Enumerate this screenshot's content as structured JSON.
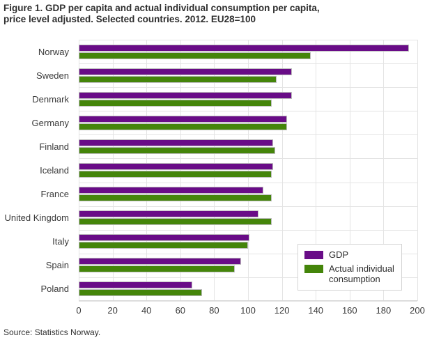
{
  "page": {
    "title_lines": [
      "Figure 1. GDP per capita and actual individual consumption per capita,",
      "price level adjusted. Selected countries. 2012. EU28=100"
    ],
    "source": "Source: Statistics Norway."
  },
  "colors": {
    "gdp": "#690c87",
    "consumption": "#44850a",
    "grid": "#e4e4e4"
  },
  "chart_data": {
    "type": "bar",
    "orientation": "horizontal",
    "title": "Figure 1. GDP per capita and actual individual consumption per capita, price level adjusted. Selected countries. 2012. EU28=100",
    "categories": [
      "Norway",
      "Sweden",
      "Denmark",
      "Germany",
      "Finland",
      "Iceland",
      "France",
      "United Kingdom",
      "Italy",
      "Spain",
      "Poland"
    ],
    "series": [
      {
        "name": "GDP",
        "color": "#690c87",
        "values": [
          195,
          126,
          126,
          123,
          115,
          115,
          109,
          106,
          101,
          96,
          67
        ]
      },
      {
        "name": "Actual individual consumption",
        "color": "#44850a",
        "values": [
          137,
          117,
          114,
          123,
          116,
          114,
          114,
          114,
          100,
          92,
          73
        ]
      }
    ],
    "xlabel": "",
    "ylabel": "",
    "xlim": [
      0,
      200
    ],
    "x_ticks": [
      0,
      20,
      40,
      60,
      80,
      100,
      120,
      140,
      160,
      180,
      200
    ],
    "grid": true,
    "legend_position": "inside-bottom-right",
    "baseline_note": "EU28=100",
    "source": "Source: Statistics Norway."
  }
}
